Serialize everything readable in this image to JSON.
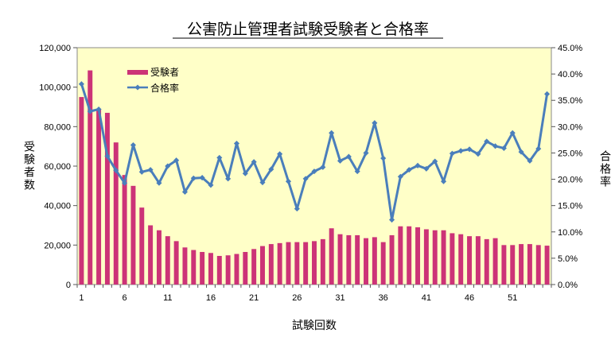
{
  "chart_data": {
    "type": "bar+line",
    "title": "公害防止管理者試験受験者と合格率",
    "xlabel": "試験回数",
    "ylabel_left": "受験者数",
    "ylabel_right": "合格率",
    "x": [
      1,
      2,
      3,
      4,
      5,
      6,
      7,
      8,
      9,
      10,
      11,
      12,
      13,
      14,
      15,
      16,
      17,
      18,
      19,
      20,
      21,
      22,
      23,
      24,
      25,
      26,
      27,
      28,
      29,
      30,
      31,
      32,
      33,
      34,
      35,
      36,
      37,
      38,
      39,
      40,
      41,
      42,
      43,
      44,
      45,
      46,
      47,
      48,
      49,
      50,
      51,
      52,
      53,
      54,
      55
    ],
    "x_tick_labels": [
      "1",
      "6",
      "11",
      "16",
      "21",
      "26",
      "31",
      "36",
      "41",
      "46",
      "51"
    ],
    "y_left_ticks": [
      "0",
      "20,000",
      "40,000",
      "60,000",
      "80,000",
      "100,000",
      "120,000"
    ],
    "y_right_ticks": [
      "0.0%",
      "5.0%",
      "10.0%",
      "15.0%",
      "20.0%",
      "25.0%",
      "30.0%",
      "35.0%",
      "40.0%",
      "45.0%"
    ],
    "ylim_left": [
      0,
      120000
    ],
    "ylim_right": [
      0,
      45
    ],
    "series": [
      {
        "name": "受験者",
        "type": "bar",
        "axis": "left",
        "color": "#CC3377",
        "values": [
          95000,
          108500,
          89000,
          87000,
          72000,
          55500,
          50000,
          39000,
          30000,
          27500,
          24500,
          22000,
          18800,
          17500,
          16500,
          16000,
          14500,
          14800,
          15500,
          16500,
          18000,
          19500,
          20500,
          21000,
          21500,
          21500,
          21500,
          22000,
          23000,
          28500,
          25500,
          25000,
          25000,
          23500,
          24000,
          21500,
          25000,
          29500,
          29500,
          29000,
          28000,
          27500,
          27500,
          26000,
          25500,
          24500,
          24500,
          23000,
          23500,
          20000,
          20000,
          20500,
          20500,
          20000,
          19700
        ]
      },
      {
        "name": "合格率",
        "type": "line",
        "axis": "right",
        "color": "#4A7EBB",
        "values": [
          38.1,
          32.9,
          33.3,
          24.4,
          21.7,
          19.3,
          26.5,
          21.4,
          21.8,
          19.3,
          22.5,
          23.6,
          17.6,
          20.2,
          20.3,
          18.9,
          24.1,
          20.1,
          26.8,
          21.1,
          23.3,
          19.4,
          21.9,
          24.8,
          19.6,
          14.4,
          20.1,
          21.5,
          22.3,
          28.8,
          23.5,
          24.3,
          21.5,
          25.0,
          30.7,
          24.0,
          12.3,
          20.5,
          21.8,
          22.6,
          22.0,
          23.4,
          19.6,
          24.9,
          25.4,
          25.7,
          24.8,
          27.2,
          26.3,
          25.9,
          28.8,
          25.2,
          23.5,
          25.8,
          36.2
        ]
      }
    ],
    "legend": {
      "position": "top-left inside"
    },
    "plot_background": "#FFFFC8",
    "grid": false
  }
}
